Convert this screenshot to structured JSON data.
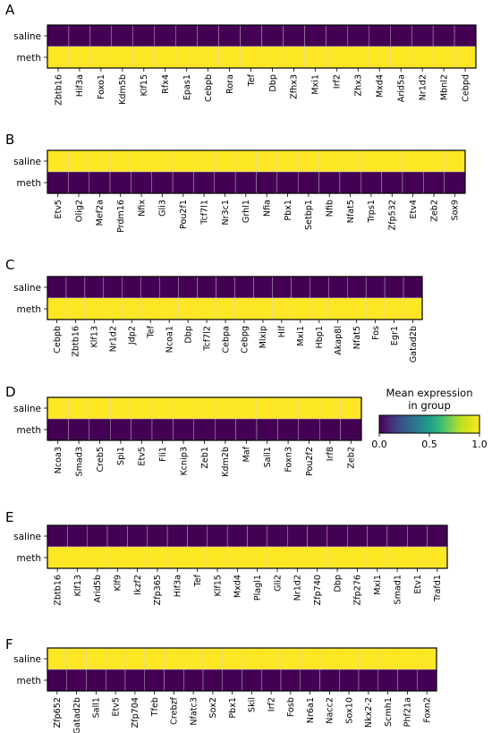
{
  "chart_data": {
    "type": "heatmap",
    "colorbar": {
      "title": "Mean expression\nin group",
      "ticks": [
        "0.0",
        "0.5",
        "1.0"
      ],
      "range": [
        0,
        1
      ],
      "colormap": "viridis"
    },
    "panels": [
      {
        "label": "A",
        "rows": [
          "saline",
          "meth"
        ],
        "genes": [
          "Zbtb16",
          "Hif3a",
          "Foxo1",
          "Kdm5b",
          "Klf15",
          "Rfx4",
          "Epas1",
          "Cebpb",
          "Rora",
          "Tef",
          "Dbp",
          "Zfhx3",
          "Mxi1",
          "Irf2",
          "Zhx3",
          "Mxd4",
          "Arid5a",
          "Nr1d2",
          "Mbnl2",
          "Cebpd"
        ],
        "values": [
          [
            0,
            0,
            0,
            0,
            0,
            0,
            0,
            0,
            0,
            0,
            0,
            0,
            0,
            0,
            0,
            0,
            0,
            0,
            0,
            0
          ],
          [
            1,
            1,
            1,
            1,
            1,
            1,
            1,
            1,
            1,
            1,
            1,
            1,
            1,
            1,
            1,
            1,
            1,
            1,
            1,
            1
          ]
        ]
      },
      {
        "label": "B",
        "rows": [
          "saline",
          "meth"
        ],
        "genes": [
          "Etv5",
          "Olig2",
          "Mef2a",
          "Prdm16",
          "Nfix",
          "Gli3",
          "Pou2f1",
          "Tcf7l1",
          "Nr3c1",
          "Grhl1",
          "Nfia",
          "Pbx1",
          "Setbp1",
          "Nfib",
          "Nfat5",
          "Trps1",
          "Zfp532",
          "Etv4",
          "Zeb2",
          "Sox9"
        ],
        "values": [
          [
            1,
            1,
            1,
            1,
            1,
            1,
            1,
            1,
            1,
            1,
            1,
            1,
            1,
            1,
            1,
            1,
            1,
            1,
            1,
            1
          ],
          [
            0,
            0,
            0,
            0,
            0,
            0,
            0,
            0,
            0,
            0,
            0,
            0,
            0,
            0,
            0,
            0,
            0,
            0,
            0,
            0
          ]
        ]
      },
      {
        "label": "C",
        "rows": [
          "saline",
          "meth"
        ],
        "genes": [
          "Cebpb",
          "Zbtb16",
          "Klf13",
          "Nr1d2",
          "Jdp2",
          "Tef",
          "Ncoa1",
          "Dbp",
          "Tcf7l2",
          "Cebpa",
          "Cebpg",
          "Mlxip",
          "Hlf",
          "Mxi1",
          "Hbp1",
          "Akap8l",
          "Nfat5",
          "Fos",
          "Egr1",
          "Gatad2b"
        ],
        "values": [
          [
            0,
            0,
            0,
            0,
            0,
            0,
            0,
            0,
            0,
            0,
            0,
            0,
            0,
            0,
            0,
            0,
            0,
            0,
            0,
            0
          ],
          [
            1,
            1,
            1,
            1,
            1,
            1,
            1,
            1,
            1,
            1,
            1,
            1,
            1,
            1,
            1,
            1,
            1,
            1,
            1,
            1
          ]
        ]
      },
      {
        "label": "D",
        "rows": [
          "saline",
          "meth"
        ],
        "genes": [
          "Ncoa3",
          "Smad3",
          "Creb5",
          "Spi1",
          "Etv5",
          "Fli1",
          "Kcnip3",
          "Zeb1",
          "Kdm2b",
          "Maf",
          "Sall1",
          "Foxn3",
          "Pou2f2",
          "Irf8",
          "Zeb2"
        ],
        "values": [
          [
            1,
            1,
            1,
            1,
            1,
            1,
            1,
            1,
            1,
            1,
            1,
            1,
            1,
            1,
            1
          ],
          [
            0,
            0,
            0,
            0,
            0,
            0,
            0,
            0,
            0,
            0,
            0,
            0,
            0,
            0,
            0
          ]
        ]
      },
      {
        "label": "E",
        "rows": [
          "saline",
          "meth"
        ],
        "genes": [
          "Zbtb16",
          "Klf13",
          "Arid5b",
          "Klf9",
          "Ikzf2",
          "Zfp365",
          "Hif3a",
          "Tef",
          "Klf15",
          "Mxd4",
          "Plagl1",
          "Gli2",
          "Nr1d2",
          "Zfp740",
          "Dbp",
          "Zfp276",
          "Mxi1",
          "Smad1",
          "Etv1",
          "Trafd1"
        ],
        "values": [
          [
            0,
            0,
            0,
            0,
            0,
            0,
            0,
            0,
            0,
            0,
            0,
            0,
            0,
            0,
            0,
            0,
            0,
            0,
            0,
            0
          ],
          [
            1,
            1,
            1,
            1,
            1,
            1,
            1,
            1,
            1,
            1,
            1,
            1,
            1,
            1,
            1,
            1,
            1,
            1,
            1,
            1
          ]
        ]
      },
      {
        "label": "F",
        "rows": [
          "saline",
          "meth"
        ],
        "genes": [
          "Zfp652",
          "Gatad2b",
          "Sall1",
          "Etv5",
          "Zfp704",
          "Tfeb",
          "Crebzf",
          "Nfatc3",
          "Sox2",
          "Pbx1",
          "Skil",
          "Irf2",
          "Fosb",
          "Nr6a1",
          "Nacc2",
          "Sox10",
          "Nkx2-2",
          "Scmh1",
          "Phf21a",
          "Foxn2"
        ],
        "values": [
          [
            1,
            1,
            1,
            1,
            1,
            1,
            1,
            1,
            1,
            1,
            1,
            1,
            1,
            1,
            1,
            1,
            1,
            1,
            1,
            1
          ],
          [
            0,
            0,
            0,
            0,
            0,
            0,
            0,
            0,
            0,
            0,
            0,
            0,
            0,
            0,
            0,
            0,
            0,
            0,
            0,
            0
          ]
        ]
      }
    ]
  }
}
